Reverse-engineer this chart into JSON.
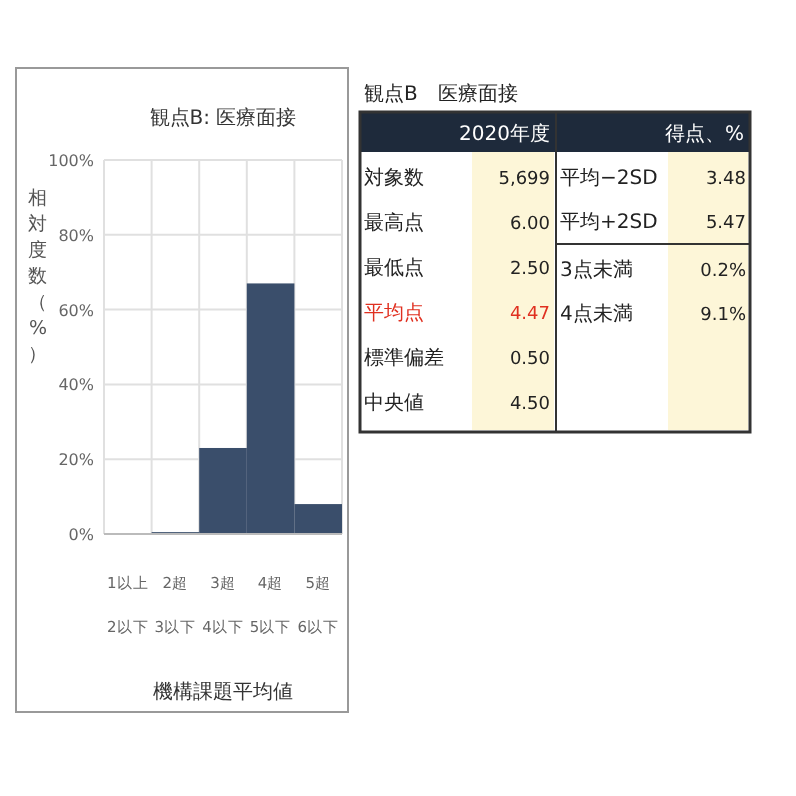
{
  "chart_data": [
    {
      "type": "bar",
      "title": "観点B: 医療面接",
      "xlabel": "機構課題平均値",
      "ylabel": "相対度数（%）",
      "categories": [
        "1以上\n2以下",
        "2超\n3以下",
        "3超\n4以下",
        "4超\n5以下",
        "5超\n6以下"
      ],
      "values": [
        0,
        0.5,
        23,
        67,
        8
      ],
      "color": "#3a4e6b",
      "ylim": [
        0,
        100
      ],
      "yticks": [
        {
          "value": 0,
          "label": "0%"
        },
        {
          "value": 20,
          "label": "20%"
        },
        {
          "value": 40,
          "label": "40%"
        },
        {
          "value": 60,
          "label": "60%"
        },
        {
          "value": 80,
          "label": "80%"
        },
        {
          "value": 100,
          "label": "100%"
        }
      ],
      "grid": true
    },
    {
      "type": "other",
      "title": "観点B　医療面接",
      "annotations": [
        "2020年度",
        "得点、%",
        "対象数",
        "5,699",
        "最高点",
        "6.00",
        "最低点",
        "2.50",
        "平均点",
        "4.47",
        "標準偏差",
        "0.50",
        "中央値",
        "4.50",
        "平均−2SD",
        "3.48",
        "平均+2SD",
        "5.47",
        "3点未満",
        "0.2%",
        "4点未満",
        "9.1%"
      ]
    }
  ]
}
